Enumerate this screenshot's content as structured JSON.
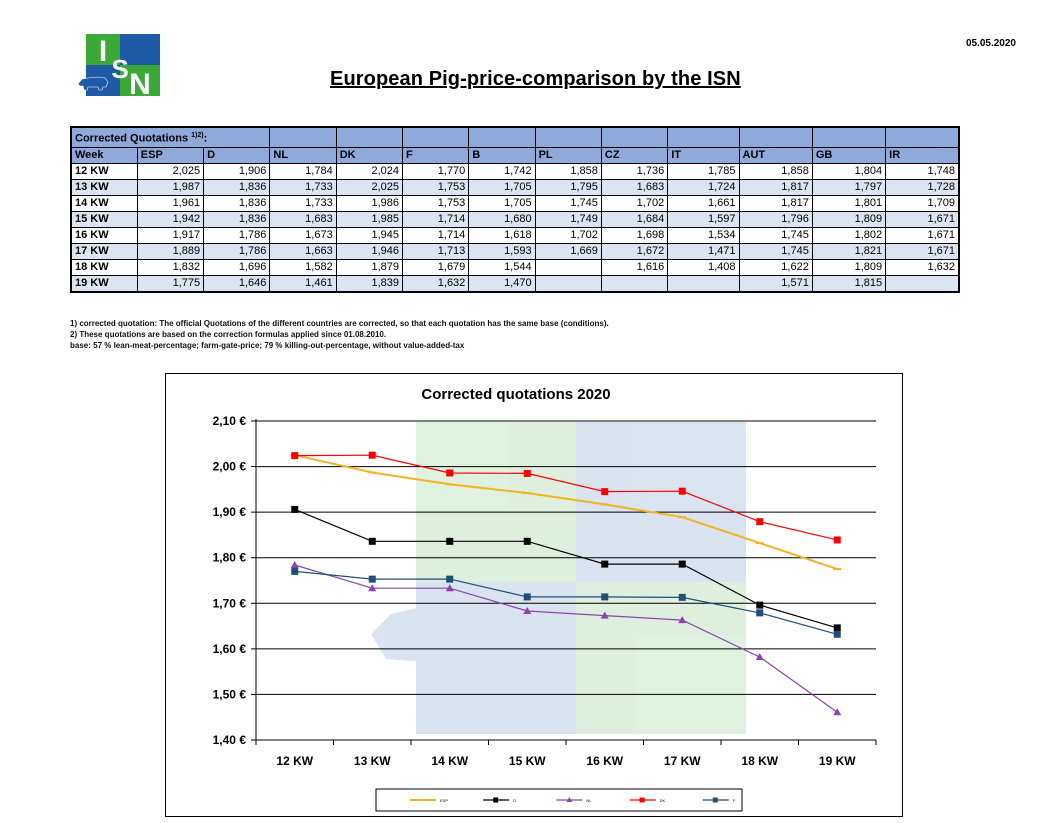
{
  "header": {
    "date": "05.05.2020",
    "title": "European Pig-price-comparison by the ISN",
    "logo_text": "ISN"
  },
  "table": {
    "caption": "Corrected Quotations",
    "caption_sup": "1)2)",
    "caption_suffix": ":",
    "columns": [
      "Week",
      "ESP",
      "D",
      "NL",
      "DK",
      "F",
      "B",
      "PL",
      "CZ",
      "IT",
      "AUT",
      "GB",
      "IR"
    ],
    "rows": [
      [
        "12 KW",
        "2,025",
        "1,906",
        "1,784",
        "2,024",
        "1,770",
        "1,742",
        "1,858",
        "1,736",
        "1,785",
        "1,858",
        "1,804",
        "1,748"
      ],
      [
        "13 KW",
        "1,987",
        "1,836",
        "1,733",
        "2,025",
        "1,753",
        "1,705",
        "1,795",
        "1,683",
        "1,724",
        "1,817",
        "1,797",
        "1,728"
      ],
      [
        "14 KW",
        "1,961",
        "1,836",
        "1,733",
        "1,986",
        "1,753",
        "1,705",
        "1,745",
        "1,702",
        "1,661",
        "1,817",
        "1,801",
        "1,709"
      ],
      [
        "15 KW",
        "1,942",
        "1,836",
        "1,683",
        "1,985",
        "1,714",
        "1,680",
        "1,749",
        "1,684",
        "1,597",
        "1,796",
        "1,809",
        "1,671"
      ],
      [
        "16 KW",
        "1,917",
        "1,786",
        "1,673",
        "1,945",
        "1,714",
        "1,618",
        "1,702",
        "1,698",
        "1,534",
        "1,745",
        "1,802",
        "1,671"
      ],
      [
        "17 KW",
        "1,889",
        "1,786",
        "1,663",
        "1,946",
        "1,713",
        "1,593",
        "1,669",
        "1,672",
        "1,471",
        "1,745",
        "1,821",
        "1,671"
      ],
      [
        "18 KW",
        "1,832",
        "1,696",
        "1,582",
        "1,879",
        "1,679",
        "1,544",
        "",
        "1,616",
        "1,408",
        "1,622",
        "1,809",
        "1,632"
      ],
      [
        "19 KW",
        "1,775",
        "1,646",
        "1,461",
        "1,839",
        "1,632",
        "1,470",
        "",
        "",
        "",
        "1,571",
        "1,815",
        ""
      ]
    ]
  },
  "notes": [
    "1) corrected quotation: The official Quotations of the different countries are corrected, so that each quotation has the same base (conditions).",
    "2) These quotations are based on the correction formulas applied since 01.08.2010.",
    "base: 57 % lean-meat-percentage; farm-gate-price; 79 % killing-out-percentage, without value-added-tax"
  ],
  "chart_data": {
    "type": "line",
    "title": "Corrected quotations 2020",
    "categories": [
      "12 KW",
      "13 KW",
      "14 KW",
      "15 KW",
      "16 KW",
      "17 KW",
      "18 KW",
      "19 KW"
    ],
    "ylim": [
      1.4,
      2.1
    ],
    "yticks": [
      "1,40 €",
      "1,50 €",
      "1,60 €",
      "1,70 €",
      "1,80 €",
      "1,90 €",
      "2,00 €",
      "2,10 €"
    ],
    "ytick_values": [
      1.4,
      1.5,
      1.6,
      1.7,
      1.8,
      1.9,
      2.0,
      2.1
    ],
    "grid": true,
    "legend_position": "bottom",
    "series": [
      {
        "name": "ESP",
        "color": "#f4b223",
        "marker": "dash",
        "values": [
          2.025,
          1.987,
          1.961,
          1.942,
          1.917,
          1.889,
          1.832,
          1.775
        ]
      },
      {
        "name": "D",
        "color": "#000000",
        "marker": "square",
        "values": [
          1.906,
          1.836,
          1.836,
          1.836,
          1.786,
          1.786,
          1.696,
          1.646
        ]
      },
      {
        "name": "NL",
        "color": "#8e44ad",
        "marker": "triangle",
        "values": [
          1.784,
          1.733,
          1.733,
          1.683,
          1.673,
          1.663,
          1.582,
          1.461
        ]
      },
      {
        "name": "DK",
        "color": "#ff0000",
        "marker": "square",
        "values": [
          2.024,
          2.025,
          1.986,
          1.985,
          1.945,
          1.946,
          1.879,
          1.839
        ]
      },
      {
        "name": "F",
        "color": "#1f4e79",
        "marker": "square",
        "values": [
          1.77,
          1.753,
          1.753,
          1.714,
          1.714,
          1.713,
          1.679,
          1.632
        ]
      }
    ]
  }
}
